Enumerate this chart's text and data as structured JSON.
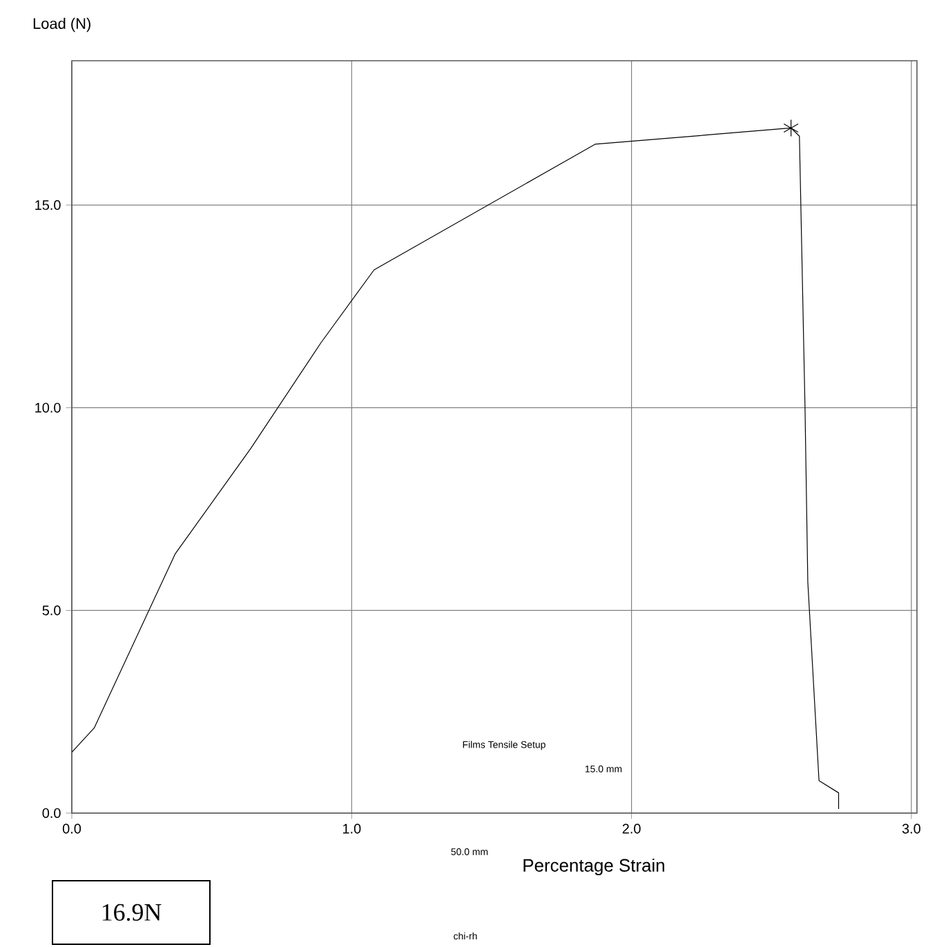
{
  "chart_data": {
    "type": "line",
    "xlabel": "Percentage Strain",
    "ylabel": "Load (N)",
    "xlim": [
      0,
      3.02
    ],
    "ylim": [
      0,
      18.56
    ],
    "xticks": [
      {
        "value": 0,
        "label": "0.0"
      },
      {
        "value": 1,
        "label": "1.0"
      },
      {
        "value": 2,
        "label": "2.0"
      },
      {
        "value": 3,
        "label": "3.0"
      }
    ],
    "yticks": [
      {
        "value": 0,
        "label": "0.0"
      },
      {
        "value": 5,
        "label": "5.0"
      },
      {
        "value": 10,
        "label": "10.0"
      },
      {
        "value": 15,
        "label": "15.0"
      }
    ],
    "grid": true,
    "marker": "none",
    "series": [
      {
        "color": "#000000",
        "x": [
          0.0,
          0.04,
          0.08,
          0.37,
          0.64,
          0.89,
          1.08,
          1.87,
          2.57,
          2.6,
          2.62,
          2.63,
          2.67,
          2.74,
          2.74
        ],
        "values": [
          1.5,
          1.8,
          2.1,
          6.4,
          9.0,
          11.6,
          13.4,
          16.5,
          16.9,
          16.7,
          10.0,
          5.7,
          0.8,
          0.5,
          0.1
        ]
      },
      {
        "type": "scatter",
        "marker": "cross",
        "color": "#000000",
        "x": [
          2.57
        ],
        "values": [
          16.9
        ]
      }
    ],
    "annotations": [
      "Films Tensile Setup",
      "15.0 mm",
      "50.0 mm",
      "chi-rh",
      "16.9N"
    ]
  }
}
